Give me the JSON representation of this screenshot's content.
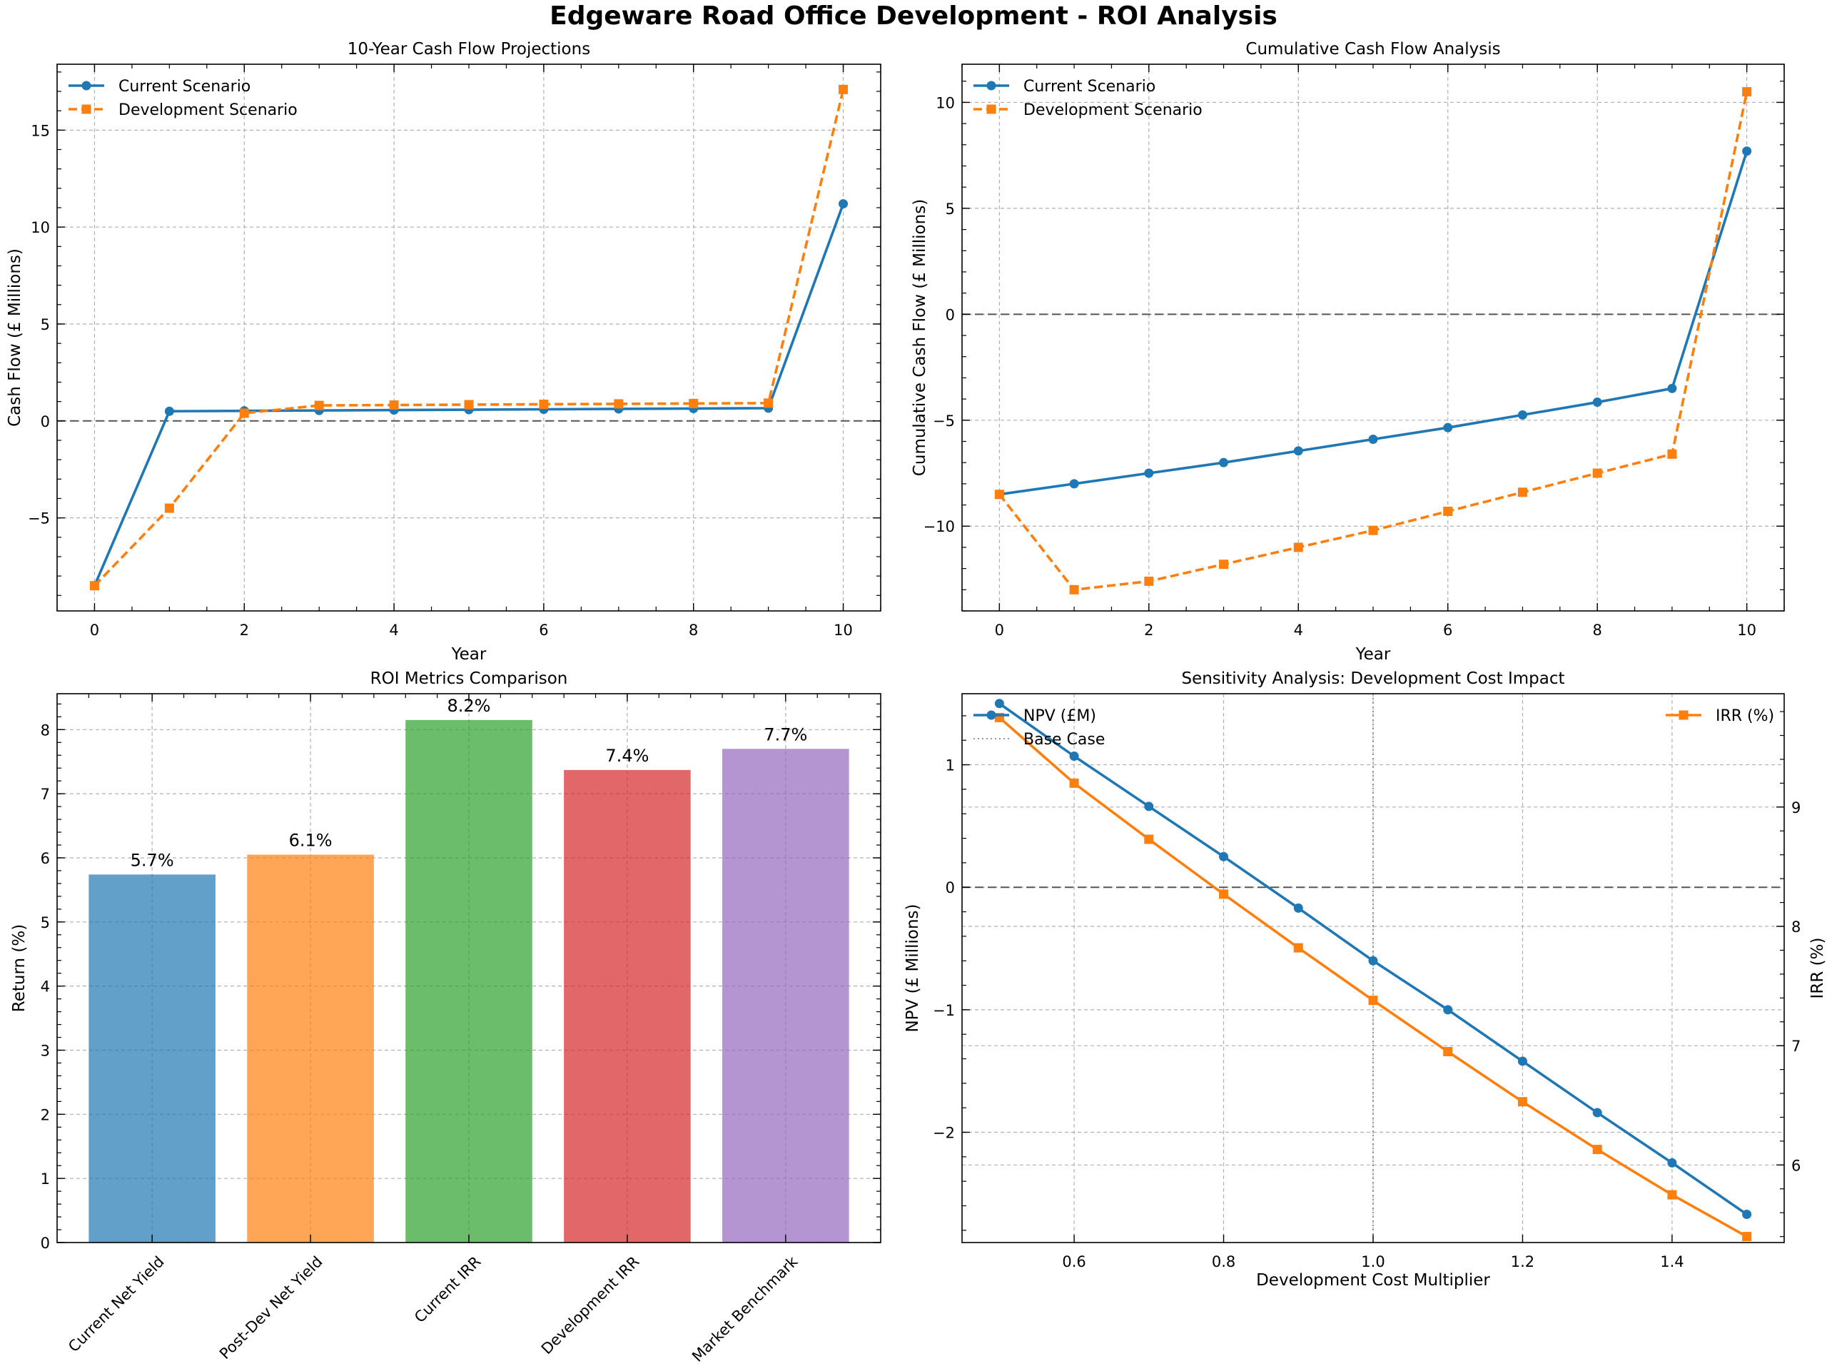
{
  "figure": {
    "title": "Edgeware Road Office Development - ROI Analysis"
  },
  "colors": {
    "blue": "#1f77b4",
    "orange": "#ff7f0e",
    "green": "#2ca02c",
    "red": "#d62728",
    "purple": "#9467bd",
    "grid": "#b0b0b0",
    "zero_line": "#555555"
  },
  "chart_data": [
    {
      "id": "cashflow",
      "type": "line",
      "title": "10-Year Cash Flow Projections",
      "xlabel": "Year",
      "ylabel": "Cash Flow (£ Millions)",
      "xlim": [
        -0.5,
        10.5
      ],
      "ylim": [
        -9.8,
        18.4
      ],
      "xticks": [
        0,
        2,
        4,
        6,
        8,
        10
      ],
      "yticks": [
        -5,
        0,
        5,
        10,
        15
      ],
      "grid": true,
      "zero_line": true,
      "legend": "top-left",
      "x": [
        0,
        1,
        2,
        3,
        4,
        5,
        6,
        7,
        8,
        9,
        10
      ],
      "series": [
        {
          "name": "Current Scenario",
          "color": "#1f77b4",
          "marker": "circle",
          "dash": "solid",
          "values": [
            -8.5,
            0.5,
            0.52,
            0.54,
            0.56,
            0.58,
            0.6,
            0.62,
            0.64,
            0.66,
            11.2
          ]
        },
        {
          "name": "Development Scenario",
          "color": "#ff7f0e",
          "marker": "square",
          "dash": "dashed",
          "values": [
            -8.5,
            -4.5,
            0.4,
            0.8,
            0.82,
            0.84,
            0.86,
            0.88,
            0.9,
            0.92,
            17.1
          ]
        }
      ]
    },
    {
      "id": "cumulative",
      "type": "line",
      "title": "Cumulative Cash Flow Analysis",
      "xlabel": "Year",
      "ylabel": "Cumulative Cash Flow (£ Millions)",
      "xlim": [
        -0.5,
        10.5
      ],
      "ylim": [
        -14.0,
        11.8
      ],
      "xticks": [
        0,
        2,
        4,
        6,
        8,
        10
      ],
      "yticks": [
        -10,
        -5,
        0,
        5,
        10
      ],
      "grid": true,
      "zero_line": true,
      "legend": "top-left",
      "x": [
        0,
        1,
        2,
        3,
        4,
        5,
        6,
        7,
        8,
        9,
        10
      ],
      "series": [
        {
          "name": "Current Scenario",
          "color": "#1f77b4",
          "marker": "circle",
          "dash": "solid",
          "values": [
            -8.5,
            -8.0,
            -7.5,
            -7.0,
            -6.45,
            -5.9,
            -5.35,
            -4.75,
            -4.15,
            -3.5,
            7.7
          ]
        },
        {
          "name": "Development Scenario",
          "color": "#ff7f0e",
          "marker": "square",
          "dash": "dashed",
          "values": [
            -8.5,
            -13.0,
            -12.6,
            -11.8,
            -11.0,
            -10.2,
            -9.3,
            -8.4,
            -7.5,
            -6.6,
            10.5
          ]
        }
      ]
    },
    {
      "id": "roi",
      "type": "bar",
      "title": "ROI Metrics Comparison",
      "xlabel": "",
      "ylabel": "Return (%)",
      "ylim": [
        0,
        8.56
      ],
      "yticks": [
        0,
        1,
        2,
        3,
        4,
        5,
        6,
        7,
        8
      ],
      "grid": true,
      "categories": [
        "Current Net Yield",
        "Post-Dev Net Yield",
        "Current IRR",
        "Development IRR",
        "Market Benchmark"
      ],
      "values": [
        5.74,
        6.05,
        8.15,
        7.37,
        7.7
      ],
      "labels": [
        "5.7%",
        "6.1%",
        "8.2%",
        "7.4%",
        "7.7%"
      ],
      "bar_colors": [
        "#1f77b4",
        "#ff7f0e",
        "#2ca02c",
        "#d62728",
        "#9467bd"
      ]
    },
    {
      "id": "sensitivity",
      "type": "line",
      "title": "Sensitivity Analysis: Development Cost Impact",
      "xlabel": "Development Cost Multiplier",
      "ylabel": "NPV (£ Millions)",
      "ylabel_right": "IRR (%)",
      "xlim": [
        0.45,
        1.55
      ],
      "ylim": [
        -2.9,
        1.58
      ],
      "ylim_right": [
        5.35,
        9.95
      ],
      "xticks": [
        0.6,
        0.8,
        1.0,
        1.2,
        1.4
      ],
      "yticks": [
        -2,
        -1,
        0,
        1
      ],
      "yticks_right": [
        6,
        7,
        8,
        9
      ],
      "grid": true,
      "zero_line": true,
      "x": [
        0.5,
        0.6,
        0.7,
        0.8,
        0.9,
        1.0,
        1.1,
        1.2,
        1.3,
        1.4,
        1.5
      ],
      "series": [
        {
          "name": "NPV (£M)",
          "axis": "left",
          "color": "#1f77b4",
          "marker": "circle",
          "dash": "solid",
          "legend": "top-left",
          "values": [
            1.5,
            1.07,
            0.66,
            0.25,
            -0.17,
            -0.6,
            -1.0,
            -1.42,
            -1.84,
            -2.25,
            -2.67
          ]
        },
        {
          "name": "IRR (%)",
          "axis": "right",
          "color": "#ff7f0e",
          "marker": "square",
          "dash": "solid",
          "legend": "top-right",
          "values": [
            9.75,
            9.2,
            8.73,
            8.27,
            7.82,
            7.38,
            6.95,
            6.53,
            6.13,
            5.75,
            5.4
          ]
        }
      ],
      "reference": {
        "name": "Base Case",
        "style": "dotted"
      }
    }
  ]
}
